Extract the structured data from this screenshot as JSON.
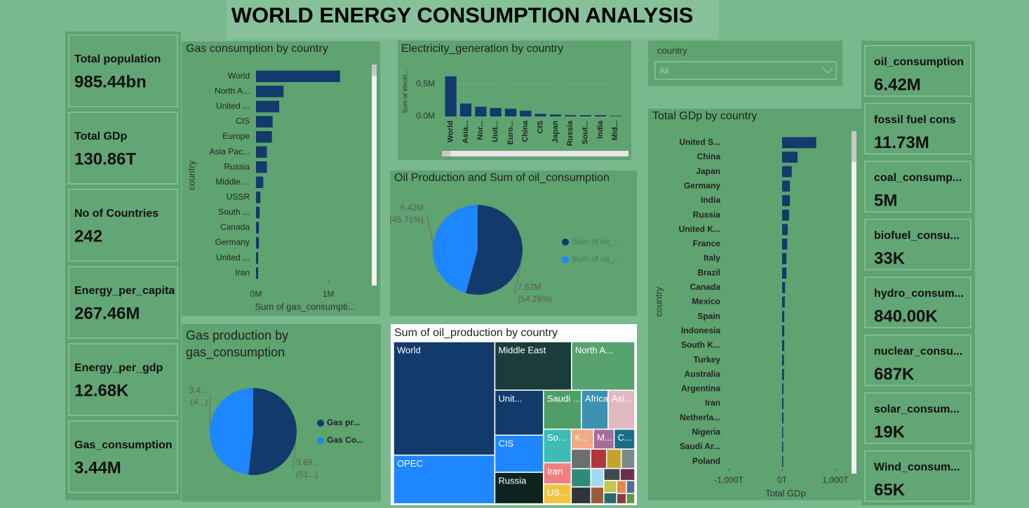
{
  "header": {
    "title": "WORLD ENERGY CONSUMPTION ANALYSIS"
  },
  "left_cards": [
    {
      "label": "Total population",
      "value": "985.44bn"
    },
    {
      "label": "Total GDp",
      "value": "130.86T"
    },
    {
      "label": "No of Countries",
      "value": "242"
    },
    {
      "label": "Energy_per_capita",
      "value": "267.46M"
    },
    {
      "label": "Energy_per_gdp",
      "value": "12.68K"
    },
    {
      "label": "Gas_consumption",
      "value": "3.44M"
    }
  ],
  "right_cards": [
    {
      "label": "oil_consumption",
      "value": "6.42M"
    },
    {
      "label": "fossil fuel cons",
      "value": "11.73M"
    },
    {
      "label": "coal_consump...",
      "value": "5M"
    },
    {
      "label": "biofuel_consu...",
      "value": "33K"
    },
    {
      "label": "hydro_consum...",
      "value": "840.00K"
    },
    {
      "label": "nuclear_consu...",
      "value": "687K"
    },
    {
      "label": "solar_consum...",
      "value": "19K"
    },
    {
      "label": "Wind_consum...",
      "value": "65K"
    }
  ],
  "slicer": {
    "label": "country",
    "value": "All"
  },
  "chart_data": [
    {
      "type": "hbar",
      "title": "Gas consumption by country",
      "x_label": "Sum of gas_consumpti...",
      "y_label": "country",
      "color": "#123a6b",
      "categories": [
        "World",
        "North A...",
        "United ...",
        "CIS",
        "Europe",
        "Asia Pac...",
        "Russia",
        "Middle ...",
        "USSR",
        "South ...",
        "Canada",
        "Germany",
        "United ...",
        "Iran"
      ],
      "values": [
        1.16,
        0.38,
        0.32,
        0.23,
        0.22,
        0.15,
        0.15,
        0.1,
        0.06,
        0.05,
        0.04,
        0.04,
        0.03,
        0.03
      ],
      "xlim": [
        0,
        1.55
      ],
      "xticks": [
        {
          "value": 0,
          "label": "0M"
        },
        {
          "value": 1,
          "label": "1M"
        }
      ],
      "grid": false
    },
    {
      "type": "vbar",
      "title": "Electricity_generation by country",
      "y_label": "Sum of electri...",
      "color": "#123a6b",
      "categories": [
        "World",
        "Asia...",
        "Nor...",
        "Unit...",
        "Euro...",
        "China",
        "CIS",
        "Japan",
        "Russia",
        "Sout...",
        "India",
        "Mid..."
      ],
      "values": [
        0.62,
        0.2,
        0.15,
        0.13,
        0.12,
        0.09,
        0.04,
        0.03,
        0.02,
        0.02,
        0.02,
        0.01
      ],
      "ylim": [
        0,
        0.77
      ],
      "yticks": [
        {
          "value": 0,
          "label": "0.0M"
        },
        {
          "value": 0.5,
          "label": "0.5M"
        }
      ],
      "grid": true
    },
    {
      "type": "pie",
      "title": "Oil Production and Sum of oil_consumption",
      "categories": [
        "Sum of oil_...",
        "Sum of oil_..."
      ],
      "colors": [
        "#123a6b",
        "#1e86ff"
      ],
      "values": [
        7.62,
        6.42
      ],
      "value_labels": [
        "7.62M",
        "6.42M"
      ],
      "percents": [
        54.29,
        45.71
      ],
      "percent_labels": [
        "(54.29%)",
        "(45.71%)"
      ]
    },
    {
      "type": "pie",
      "title": "Gas production by gas_consumption",
      "categories": [
        "Gas pr...",
        "Gas Co..."
      ],
      "colors": [
        "#123a6b",
        "#1e86ff"
      ],
      "values": [
        3.69,
        3.44
      ],
      "value_labels": [
        "3.69...",
        "3.4..."
      ],
      "percents": [
        51,
        49
      ],
      "percent_labels": [
        "(51...)",
        "(4...)"
      ]
    },
    {
      "type": "treemap",
      "title": "Sum of oil_production by country",
      "categories": [
        "World",
        "OPEC",
        "Middle East",
        "North A...",
        "Unit...",
        "CIS",
        "Russia",
        "Saudi ...",
        "Africa",
        "Asi...",
        "So...",
        "Iran",
        "US...",
        "K...",
        "M...",
        "C...",
        null,
        null,
        null,
        null,
        null,
        null,
        null,
        null,
        null,
        null,
        null,
        null,
        null,
        null,
        null,
        null
      ],
      "colors": [
        "#123a6b",
        "#1e86ff",
        "#1a3d3a",
        "#57a26f",
        "#123a6b",
        "#1e86ff",
        "#0d2320",
        "#4f9e6a",
        "#3a91b0",
        "#e0b9c0",
        "#3cbcb4",
        "#f08080",
        "#f0c440",
        "#f3a983",
        "#a86c98",
        "#1b6e85",
        "#6b6f70",
        "#2e8b7a",
        "#31343b",
        "#b4363c",
        "#c4a22c",
        "#7a8a8c",
        "#a5d8f0",
        "#9c5a3c",
        "#3f4a4c",
        "#6a2f4f",
        "#c1c64a",
        "#246c6f",
        "#e28a4d",
        "#4e6f9a",
        "#8d3a45",
        "#5b9c3c"
      ],
      "values": [
        21000,
        9000,
        6800,
        5600,
        4000,
        3300,
        2800,
        2700,
        1900,
        1900,
        1700,
        1080,
        1000,
        810,
        750,
        750,
        700,
        650,
        600,
        560,
        520,
        480,
        440,
        400,
        360,
        320,
        290,
        260,
        230,
        200,
        180,
        160
      ]
    },
    {
      "type": "hbar",
      "title": "Total GDp by country",
      "x_label": "Total GDp",
      "y_label": "country",
      "color": "#123a6b",
      "categories": [
        "United S...",
        "China",
        "Japan",
        "Germany",
        "India",
        "Russia",
        "United K...",
        "France",
        "Italy",
        "Brazil",
        "Canada",
        "Mexico",
        "Spain",
        "Indonesia",
        "South K...",
        "Turkey",
        "Australia",
        "Argentina",
        "Iran",
        "Netherla...",
        "Nigeria",
        "Saudi Ar...",
        "Poland"
      ],
      "values": [
        640,
        290,
        180,
        145,
        145,
        130,
        105,
        95,
        80,
        80,
        55,
        50,
        40,
        40,
        40,
        35,
        35,
        25,
        25,
        25,
        20,
        20,
        20
      ],
      "xlim": [
        -1120,
        1250
      ],
      "xticks": [
        {
          "value": -1000,
          "label": "-1,000T"
        },
        {
          "value": 0,
          "label": "0T"
        },
        {
          "value": 1000,
          "label": "1,000T"
        }
      ],
      "grid": false
    }
  ]
}
